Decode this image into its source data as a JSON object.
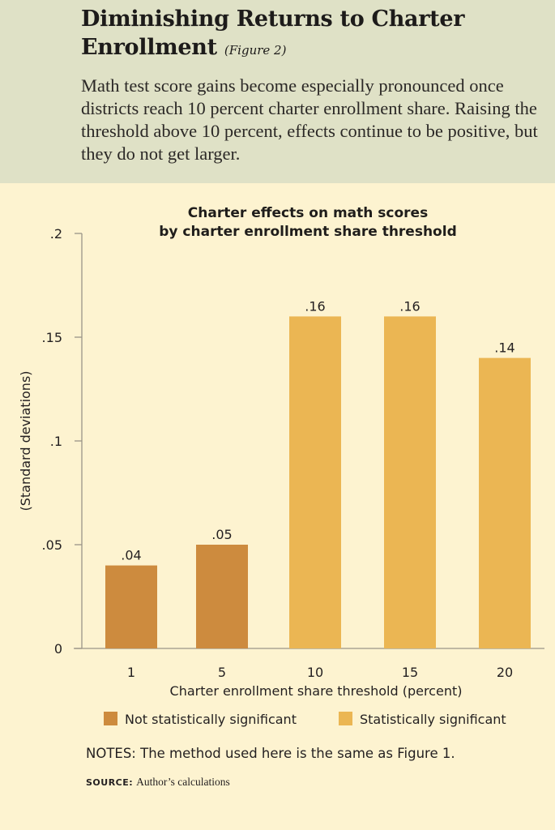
{
  "header": {
    "title": "Diminishing Returns to Charter Enrollment",
    "figure_tag": "(Figure 2)",
    "description": "Math test score gains become especially pronounced once districts reach 10 percent charter enrollment share. Raising the threshold above 10 percent, effects continue to be positive, but they do not get larger."
  },
  "chart_data": {
    "type": "bar",
    "title": "Charter effects on math scores",
    "subtitle": "by charter enrollment share threshold",
    "categories": [
      "1",
      "5",
      "10",
      "15",
      "20"
    ],
    "values": [
      0.04,
      0.05,
      0.16,
      0.16,
      0.14
    ],
    "value_labels": [
      ".04",
      ".05",
      ".16",
      ".16",
      ".14"
    ],
    "significance": [
      "not",
      "not",
      "sig",
      "sig",
      "sig"
    ],
    "xlabel": "Charter enrollment share threshold (percent)",
    "ylabel": "(Standard deviations)",
    "ylim": [
      0,
      0.2
    ],
    "yticks": [
      0,
      0.05,
      0.1,
      0.15,
      0.2
    ],
    "ytick_labels": [
      "0",
      ".05",
      ".1",
      ".15",
      ".2"
    ],
    "grid": false,
    "legend": [
      {
        "label": "Not statistically significant",
        "color": "#cd8b3e",
        "key": "not"
      },
      {
        "label": "Statistically significant",
        "color": "#ebb653",
        "key": "sig"
      }
    ],
    "legend_position": "bottom"
  },
  "footer": {
    "notes": "NOTES: The method used here is the same as Figure 1.",
    "source_label": "SOURCE:",
    "source_text": "Author’s calculations"
  },
  "colors": {
    "background": "#fdf3d0",
    "header_background": "#dfe1c6",
    "axis": "#9a9488",
    "text": "#231f20"
  }
}
